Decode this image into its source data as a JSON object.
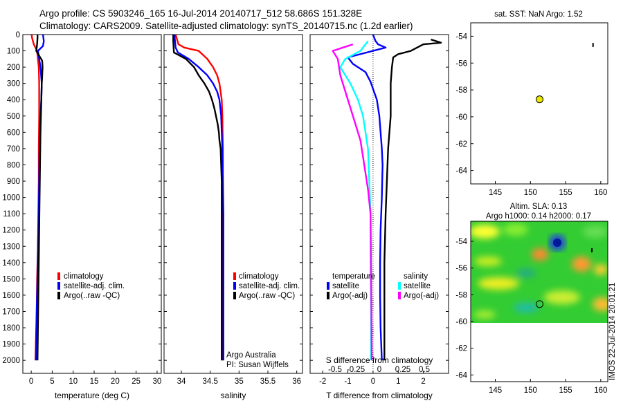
{
  "header": {
    "line1": "Argo profile: CS 5903246_165 16-Jul-2014 20140717_512 58.686S 151.328E",
    "line2": "Climatology: CARS2009. Satellite-adjusted climatology: synTS_20140715.nc (1.2d earlier)"
  },
  "side": {
    "sst_title": "sat. SST: NaN Argo: 1.52",
    "sla_title1": "Altim. SLA: 0.13",
    "sla_title2": "Argo h1000: 0.14 h2000: 0.17",
    "stamp": "IMOS 22-Jul-2014 20:01:21"
  },
  "colors": {
    "climatology": "#ff0000",
    "satellite": "#0000ff",
    "argo": "#000000",
    "argo_adj_s": "#ff00ff",
    "satellite_s": "#00ffff"
  },
  "chart_data": [
    {
      "type": "line",
      "id": "temperature",
      "xlabel": "temperature (deg C)",
      "ylabel": "",
      "xlim": [
        -2,
        31
      ],
      "ylim": [
        2080,
        0
      ],
      "invert_y": true,
      "xticks": [
        0,
        5,
        10,
        15,
        20,
        25,
        30
      ],
      "yticks": [
        0,
        100,
        200,
        300,
        400,
        500,
        600,
        700,
        800,
        900,
        1000,
        1100,
        1200,
        1300,
        1400,
        1500,
        1600,
        1700,
        1800,
        1900,
        2000
      ],
      "legend": [
        "climatology",
        "satellite-adj. clim.",
        "Argo(..raw -QC)"
      ],
      "series": [
        {
          "name": "climatology",
          "color": "#ff0000",
          "x": [
            0.1,
            0.2,
            0.6,
            1.4,
            1.8,
            1.9,
            1.9,
            1.9,
            1.8,
            1.8,
            1.7,
            1.6,
            1.4,
            1.3,
            1.0
          ],
          "y": [
            0,
            20,
            60,
            100,
            200,
            300,
            400,
            500,
            700,
            900,
            1100,
            1300,
            1500,
            1700,
            2000
          ]
        },
        {
          "name": "satellite-adj. clim.",
          "color": "#0000ff",
          "x": [
            2.8,
            3.0,
            2.8,
            1.6,
            2.2,
            2.5,
            2.4,
            2.2,
            2.0,
            1.9,
            1.8,
            1.6,
            1.5,
            1.3,
            1.1
          ],
          "y": [
            0,
            40,
            70,
            100,
            200,
            300,
            400,
            500,
            700,
            900,
            1100,
            1300,
            1500,
            1700,
            2000
          ]
        },
        {
          "name": "Argo(..raw -QC)",
          "color": "#000000",
          "x": [
            1.5,
            1.5,
            1.4,
            1.2,
            2.6,
            2.7,
            2.6,
            2.5,
            2.4,
            2.3,
            2.2,
            2.1,
            2.0,
            1.9,
            1.8,
            1.7,
            1.6,
            1.5
          ],
          "y": [
            0,
            20,
            60,
            100,
            160,
            200,
            260,
            300,
            400,
            500,
            600,
            800,
            1000,
            1200,
            1400,
            1600,
            1800,
            2000
          ]
        }
      ]
    },
    {
      "type": "line",
      "id": "salinity",
      "xlabel": "salinity",
      "xlim": [
        33.7,
        36.1
      ],
      "ylim": [
        2080,
        0
      ],
      "invert_y": true,
      "xticks": [
        34,
        34.5,
        35,
        35.5,
        36
      ],
      "legend": [
        "climatology",
        "satellite-adj. clim.",
        "Argo(..raw -QC)"
      ],
      "annotation": [
        "Argo Australia",
        "PI: Susan Wijffels"
      ],
      "series": [
        {
          "name": "climatology",
          "color": "#ff0000",
          "x": [
            33.9,
            33.95,
            34.05,
            34.3,
            34.45,
            34.55,
            34.62,
            34.66,
            34.7,
            34.71,
            34.72,
            34.72,
            34.72,
            34.72,
            34.72,
            34.71
          ],
          "y": [
            0,
            60,
            80,
            100,
            150,
            200,
            250,
            300,
            400,
            500,
            700,
            900,
            1100,
            1400,
            1700,
            2000
          ]
        },
        {
          "name": "satellite-adj. clim.",
          "color": "#0000ff",
          "x": [
            33.88,
            33.89,
            33.9,
            33.94,
            34.13,
            34.3,
            34.45,
            34.55,
            34.62,
            34.66,
            34.69,
            34.7,
            34.71,
            34.72,
            34.73,
            34.73,
            34.73,
            34.73
          ],
          "y": [
            0,
            40,
            80,
            110,
            150,
            200,
            250,
            300,
            350,
            400,
            500,
            600,
            700,
            900,
            1100,
            1400,
            1700,
            2000
          ]
        },
        {
          "name": "Argo(..raw -QC)",
          "color": "#000000",
          "x": [
            33.86,
            33.86,
            33.87,
            34.08,
            34.22,
            34.3,
            34.4,
            34.48,
            34.53,
            34.57,
            34.6,
            34.63,
            34.65,
            34.66,
            34.68,
            34.69,
            34.7,
            34.7,
            34.7,
            34.7
          ],
          "y": [
            0,
            40,
            110,
            150,
            200,
            250,
            300,
            350,
            400,
            450,
            500,
            550,
            600,
            650,
            700,
            800,
            900,
            1100,
            1500,
            2000
          ]
        }
      ]
    },
    {
      "type": "line",
      "id": "difference",
      "xlabel": "T difference from climatology",
      "xlabel_top": "S difference from climatology",
      "xlim": [
        -2.5,
        3
      ],
      "ylim": [
        2080,
        0
      ],
      "invert_y": true,
      "xticks": [
        -2,
        -1,
        0,
        1,
        2
      ],
      "xticks_s": [
        "-0.5",
        "-0.25",
        "0",
        "0.25",
        "0.5"
      ],
      "zero_line": 0,
      "legend_titles": [
        "temperature",
        "salinity"
      ],
      "legend": [
        "satellite",
        "Argo(-adj)",
        "satellite",
        "Argo(-adj)"
      ],
      "series": [
        {
          "name": "satellite",
          "color": "#0000ff",
          "x": [
            0.0,
            0.1,
            0.2,
            0.5,
            -1.0,
            -0.8,
            -0.3,
            -0.1,
            0.15,
            0.25,
            0.3,
            0.35,
            0.38,
            0.35,
            0.3,
            0.28,
            0.28,
            0.3,
            0.35
          ],
          "y": [
            0,
            40,
            60,
            80,
            140,
            180,
            230,
            290,
            400,
            500,
            600,
            700,
            800,
            1000,
            1200,
            1400,
            1600,
            1800,
            2000
          ]
        },
        {
          "name": "Argo(-adj)",
          "color": "#000000",
          "x": [
            2.3,
            2.7,
            2.0,
            1.5,
            1.0,
            0.8,
            0.75,
            0.7,
            0.7,
            0.6,
            0.55,
            0.5,
            0.45,
            0.45,
            0.45
          ],
          "y": [
            30,
            50,
            60,
            100,
            120,
            140,
            200,
            300,
            500,
            700,
            900,
            1100,
            1400,
            1700,
            2000
          ]
        },
        {
          "name": "satellite",
          "color": "#00ffff",
          "x": [
            -0.2,
            -0.3,
            -0.5,
            -1.1,
            -1.3,
            -0.9,
            -0.6,
            -0.4,
            -0.3,
            -0.2,
            -0.15,
            -0.1,
            -0.1,
            -0.08,
            -0.08
          ],
          "y": [
            40,
            60,
            100,
            150,
            200,
            300,
            400,
            500,
            600,
            700,
            900,
            1100,
            1400,
            1700,
            2000
          ]
        },
        {
          "name": "Argo(-adj)",
          "color": "#ff00ff",
          "x": [
            -0.8,
            -1.2,
            -1.6,
            -1.4,
            -1.3,
            -1.1,
            -0.9,
            -0.7,
            -0.5,
            -0.4,
            -0.3,
            -0.2,
            -0.1,
            -0.08,
            -0.05
          ],
          "y": [
            60,
            80,
            100,
            150,
            250,
            350,
            450,
            550,
            650,
            750,
            850,
            950,
            1100,
            1400,
            2000
          ]
        }
      ]
    },
    {
      "type": "scatter",
      "id": "sst-map",
      "title": "sat. SST: NaN Argo: 1.52",
      "xlim": [
        141.5,
        161
      ],
      "ylim": [
        -65,
        -53
      ],
      "xticks": [
        145,
        150,
        155,
        160
      ],
      "yticks": [
        -54,
        -56,
        -58,
        -60,
        -62,
        -64
      ],
      "points": [
        {
          "x": 151.3,
          "y": -58.7,
          "color": "#e8e800"
        }
      ],
      "track": [
        {
          "x": 158.9,
          "y": -54.5
        },
        {
          "x": 158.9,
          "y": -54.8
        }
      ]
    },
    {
      "type": "heatmap",
      "id": "sla-map",
      "title": "Altim. SLA: 0.13",
      "subtitle": "Argo h1000: 0.14 h2000: 0.17",
      "xlim": [
        141.5,
        161
      ],
      "ylim": [
        -64.5,
        -52.5
      ],
      "xticks": [
        145,
        150,
        155,
        160
      ],
      "yticks": [
        -54,
        -56,
        -58,
        -60,
        -62,
        -64
      ],
      "field_extent": {
        "ylim": [
          -60,
          -52.5
        ]
      },
      "points": [
        {
          "x": 151.3,
          "y": -58.7
        }
      ],
      "features": [
        {
          "x": 153.8,
          "y": -54.2,
          "kind": "low"
        }
      ]
    }
  ]
}
